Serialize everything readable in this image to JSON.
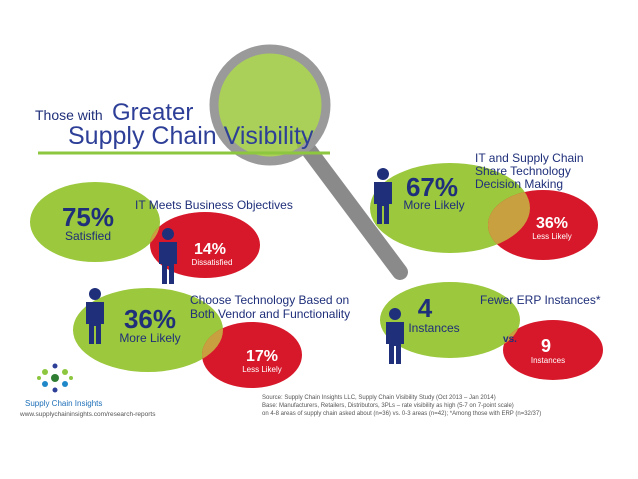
{
  "title": {
    "prefix": "Those with",
    "emphasis": "Greater",
    "main": "Supply Chain Visibility"
  },
  "panels": [
    {
      "heading": [
        "IT Meets Business Objectives"
      ],
      "high": {
        "value": "75%",
        "label": "Satisfied"
      },
      "low": {
        "value": "14%",
        "label": "Dissatisfied"
      }
    },
    {
      "heading": [
        "IT and Supply Chain",
        "Share Technology",
        "Decision Making"
      ],
      "high": {
        "value": "67%",
        "label": "More Likely"
      },
      "low": {
        "value": "36%",
        "label": "Less Likely"
      }
    },
    {
      "heading": [
        "Choose Technology Based on",
        "Both Vendor and Functionality"
      ],
      "high": {
        "value": "36%",
        "label": "More Likely"
      },
      "low": {
        "value": "17%",
        "label": "Less Likely"
      }
    },
    {
      "heading": [
        "Fewer ERP Instances*"
      ],
      "high": {
        "value": "4",
        "label": "Instances"
      },
      "versus": "vs.",
      "low": {
        "value": "9",
        "label": "Instances"
      }
    }
  ],
  "logo": {
    "name": "Supply Chain Insights",
    "url": "www.supplychaininsights.com/research-reports"
  },
  "source": [
    "Source:  Supply Chain Insights LLC, Supply Chain Visibility Study (Oct 2013 – Jan 2014)",
    "Base:  Manufacturers, Retailers, Distributors, 3PLs – rate visibility as high (5-7 on 7-point scale)",
    "on 4-8 areas of supply chain asked about (n=36) vs. 0-3 areas (n=42); *Among those with ERP (n=32/37)"
  ]
}
